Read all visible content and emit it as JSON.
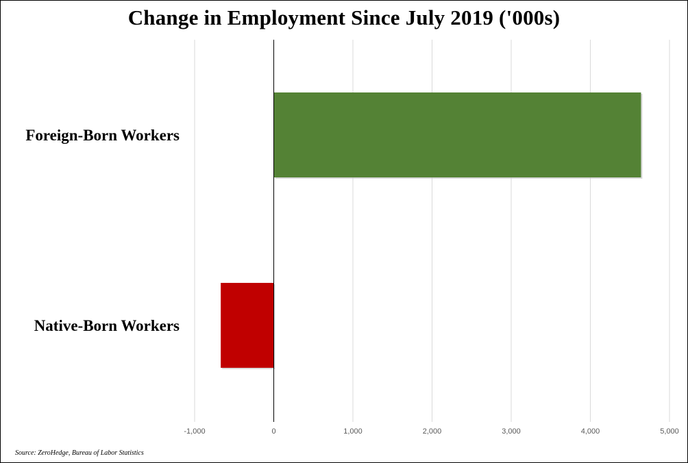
{
  "chart_data": {
    "type": "bar",
    "orientation": "horizontal",
    "title": "Change in Employment Since July 2019 ('000s)",
    "categories": [
      "Foreign-Born Workers",
      "Native-Born Workers"
    ],
    "values": [
      4640,
      -670
    ],
    "colors": [
      "#548235",
      "#c00000"
    ],
    "xlim": [
      -1000,
      5000
    ],
    "xticks": [
      -1000,
      0,
      1000,
      2000,
      3000,
      4000,
      5000
    ],
    "xtick_labels": [
      "-1,000",
      "0",
      "1,000",
      "2,000",
      "3,000",
      "4,000",
      "5,000"
    ],
    "grid": true,
    "legend": "none",
    "source": "Source: ZeroHedge, Bureau of Labor Statistics"
  }
}
